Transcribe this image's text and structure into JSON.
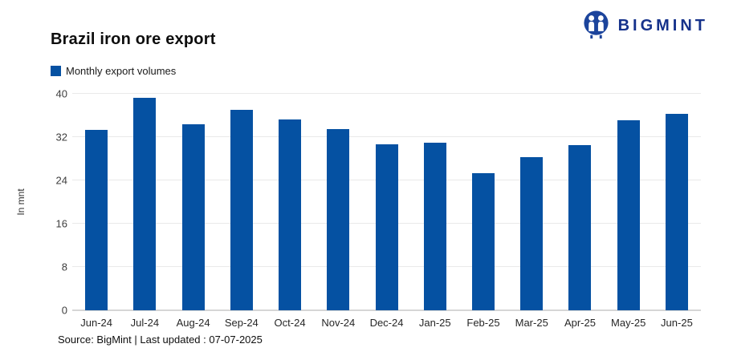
{
  "header": {
    "title": "Brazil iron ore export",
    "logo": {
      "text": "BIGMINT",
      "icon": "bigmint-miners-icon",
      "text_color": "#16328B",
      "icon_color": "#1C449C"
    }
  },
  "legend": {
    "label": "Monthly export volumes",
    "swatch_color": "#0551A2"
  },
  "chart_data": {
    "type": "bar",
    "title": "Brazil iron ore export",
    "series_name": "Monthly export volumes",
    "categories": [
      "Jun-24",
      "Jul-24",
      "Aug-24",
      "Sep-24",
      "Oct-24",
      "Nov-24",
      "Dec-24",
      "Jan-25",
      "Feb-25",
      "Mar-25",
      "Apr-25",
      "May-25",
      "Jun-25"
    ],
    "values": [
      33.3,
      39.2,
      34.4,
      37.0,
      35.3,
      33.5,
      30.6,
      31.0,
      25.4,
      28.3,
      30.5,
      35.1,
      36.3
    ],
    "xlabel": "",
    "ylabel": "In mnt",
    "ylim": [
      0,
      40
    ],
    "ytick_step": 8,
    "yticks": [
      0,
      8,
      16,
      24,
      32,
      40
    ],
    "grid": "horizontal",
    "legend_position": "top-left",
    "bar_color": "#0551A2",
    "gridline_color": "#e9e9e9"
  },
  "footer": {
    "source": "Source: BigMint | Last updated : 07-07-2025"
  }
}
